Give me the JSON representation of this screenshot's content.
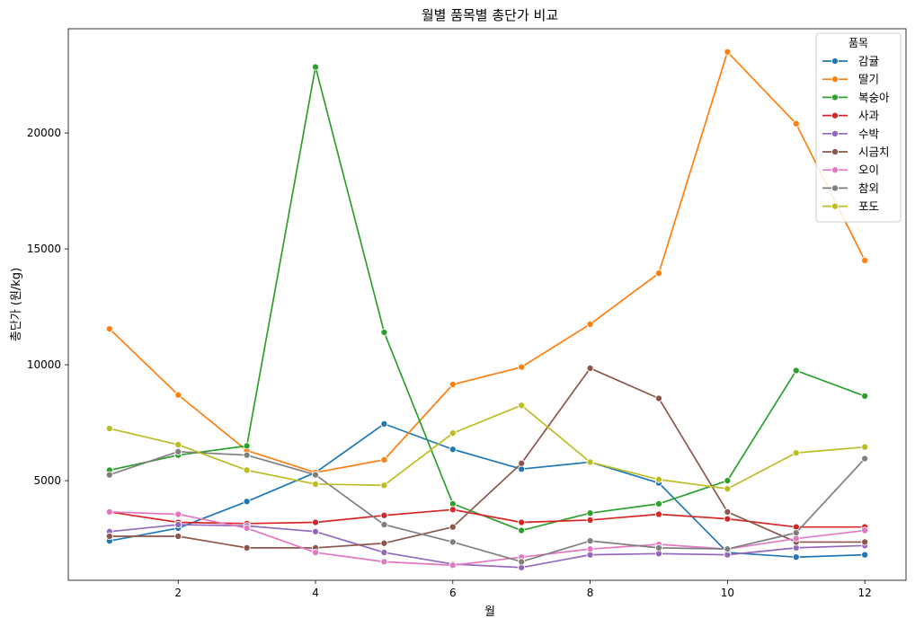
{
  "chart_data": {
    "type": "line",
    "title": "월별 품목별 총단가 비교",
    "xlabel": "월",
    "ylabel": "총단가 (원/kg)",
    "x": [
      1,
      2,
      3,
      4,
      5,
      6,
      7,
      8,
      9,
      10,
      11,
      12
    ],
    "xlim": [
      0.4,
      12.6
    ],
    "ylim": [
      700,
      24500
    ],
    "xticks": [
      2,
      4,
      6,
      8,
      10,
      12
    ],
    "yticks": [
      5000,
      10000,
      15000,
      20000
    ],
    "xtick_labels": [
      "2",
      "4",
      "6",
      "8",
      "10",
      "12"
    ],
    "ytick_labels": [
      "5000",
      "10000",
      "15000",
      "20000"
    ],
    "grid": false,
    "legend": {
      "title": "품목",
      "position": "top-right"
    },
    "series": [
      {
        "name": "감귤",
        "color": "#1f77b4",
        "values": [
          2400,
          2950,
          4100,
          5350,
          7450,
          6350,
          5500,
          5800,
          4900,
          1900,
          1700,
          1800
        ]
      },
      {
        "name": "딸기",
        "color": "#ff7f0e",
        "values": [
          11550,
          8700,
          6300,
          5350,
          5900,
          9150,
          9900,
          11750,
          13950,
          23500,
          20400,
          14500
        ]
      },
      {
        "name": "복숭아",
        "color": "#2ca02c",
        "values": [
          5450,
          6100,
          6500,
          22850,
          11400,
          4000,
          2850,
          3600,
          4000,
          5000,
          9750,
          8650
        ]
      },
      {
        "name": "사과",
        "color": "#d62728",
        "values": [
          3650,
          3200,
          3150,
          3200,
          3500,
          3750,
          3200,
          3300,
          3550,
          3350,
          3000,
          3000
        ]
      },
      {
        "name": "수박",
        "color": "#9467bd",
        "values": [
          2800,
          3100,
          3050,
          2800,
          1900,
          1400,
          1250,
          1800,
          1850,
          1800,
          2100,
          2200
        ]
      },
      {
        "name": "시금치",
        "color": "#8c564b",
        "values": [
          2600,
          2600,
          2100,
          2100,
          2300,
          3000,
          5750,
          9850,
          8550,
          3650,
          2350,
          2350
        ]
      },
      {
        "name": "오이",
        "color": "#e377c2",
        "values": [
          3650,
          3550,
          2950,
          1900,
          1500,
          1350,
          1700,
          2050,
          2250,
          2050,
          2500,
          2850
        ]
      },
      {
        "name": "참외",
        "color": "#7f7f7f",
        "values": [
          5250,
          6250,
          6100,
          5250,
          3100,
          2350,
          1500,
          2400,
          2100,
          2050,
          2750,
          5950
        ]
      },
      {
        "name": "포도",
        "color": "#bcbd22",
        "values": [
          7250,
          6550,
          5450,
          4850,
          4800,
          7050,
          8250,
          5800,
          5050,
          4650,
          6200,
          6450
        ]
      }
    ]
  }
}
